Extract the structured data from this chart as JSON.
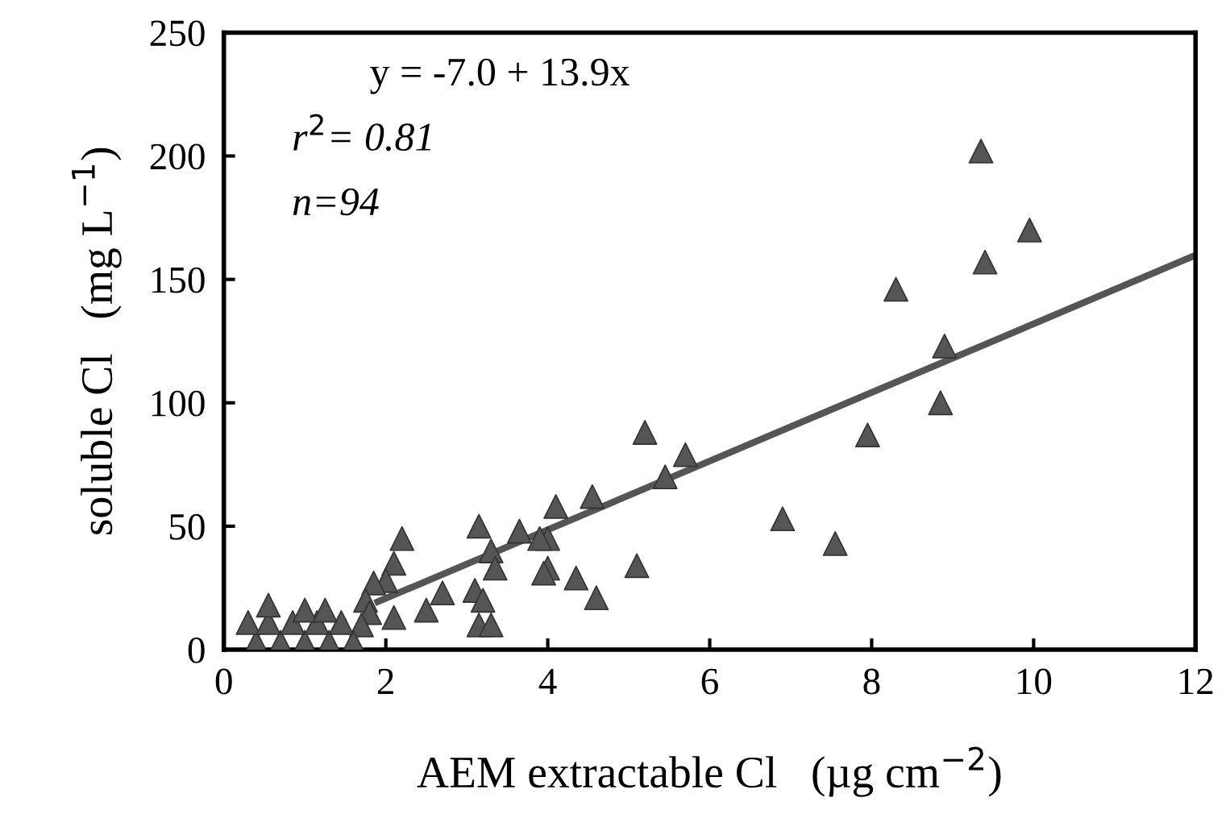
{
  "chart_data": {
    "type": "scatter",
    "xlabel": "AEM extractable Cl   (µg cm$^{−2}$)",
    "ylabel": "soluble Cl   (mg L$^{−1}$)",
    "xlim": [
      0,
      12
    ],
    "ylim": [
      0,
      250
    ],
    "xticks": [
      0,
      2,
      4,
      6,
      8,
      10,
      12
    ],
    "yticks": [
      0,
      50,
      100,
      150,
      200,
      250
    ],
    "grid": false,
    "legend": false,
    "annotations": [
      "y = -7.0 + 13.9x",
      "r$^{2}$= 0.81",
      "n=94"
    ],
    "series": [
      {
        "marker": "triangle",
        "color": "#555555",
        "x": [
          9.35,
          9.95,
          9.4,
          8.3,
          8.9,
          8.85,
          7.95,
          6.9,
          7.55,
          5.2,
          5.7,
          5.45,
          4.55,
          4.1,
          3.65,
          3.15,
          3.3,
          3.1,
          3.2,
          3.15,
          3.3,
          3.35,
          4.0,
          3.9,
          4.0,
          3.95,
          4.35,
          4.6,
          5.1,
          2.2,
          2.1,
          2.0,
          1.85,
          2.1,
          2.5,
          2.7,
          1.75,
          1.8,
          1.7,
          0.4,
          0.7,
          1.0,
          1.3,
          1.6,
          0.3,
          0.55,
          0.85,
          1.15,
          1.45,
          0.55,
          1.0,
          1.25
        ],
        "values": [
          202,
          170,
          157,
          146,
          123,
          100,
          87,
          53,
          43,
          88,
          79,
          70,
          62,
          58,
          48,
          50,
          40,
          24,
          20,
          10,
          10,
          33,
          45,
          45,
          33,
          31,
          29,
          21,
          34,
          45,
          35,
          28,
          27,
          13,
          16,
          23,
          20,
          15,
          10,
          3,
          3,
          3,
          3,
          3,
          11,
          11,
          11,
          11,
          11,
          18,
          16,
          16
        ]
      },
      {
        "type": "line",
        "color": "#555555",
        "x": [
          1.9,
          12
        ],
        "values": [
          19.4,
          159.8
        ]
      }
    ]
  }
}
